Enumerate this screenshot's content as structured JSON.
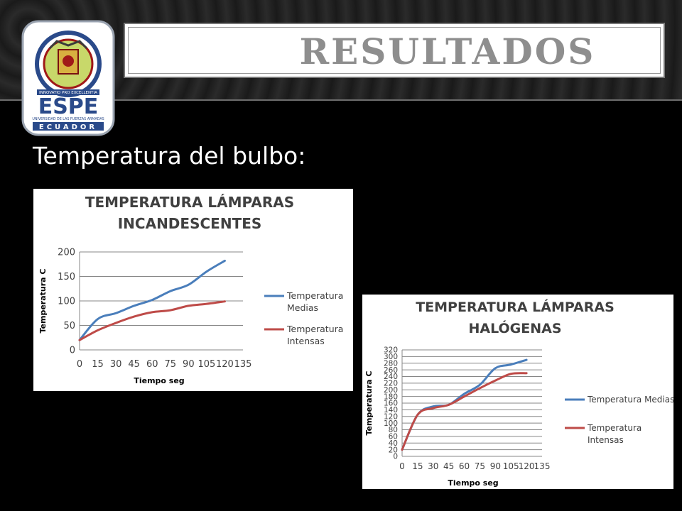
{
  "header": {
    "title": "RESULTADOS"
  },
  "logo": {
    "name": "ESPE",
    "line1": "UNIVERSIDAD DE LAS FUERZAS ARMADAS",
    "country": "ECUADOR",
    "motto": "INNOVATIO PRO EXCELLENTIA"
  },
  "subtitle": "Temperatura del bulbo:",
  "colors": {
    "series_medias": "#4a7ebb",
    "series_intensas": "#be4b48",
    "title_box": "#8e8e8e"
  },
  "chart_data": [
    {
      "type": "line",
      "title": "TEMPERATURA LÁMPARAS INCANDESCENTES",
      "title_lines": [
        "TEMPERATURA LÁMPARAS",
        "INCANDESCENTES"
      ],
      "xlabel": "Tiempo seg",
      "ylabel": "Temperatura C",
      "x_ticks": [
        0,
        15,
        30,
        45,
        60,
        75,
        90,
        105,
        120,
        135
      ],
      "y_ticks": [
        0,
        50,
        100,
        150,
        200
      ],
      "xlim": [
        0,
        135
      ],
      "ylim": [
        0,
        200
      ],
      "grid": true,
      "legend": "right",
      "x": [
        0,
        15,
        30,
        45,
        60,
        75,
        90,
        105,
        120
      ],
      "series": [
        {
          "name": "Temperatura Medias",
          "legend_lines": [
            "Temperatura",
            "Medias"
          ],
          "color": "#4a7ebb",
          "values": [
            20,
            63,
            75,
            90,
            102,
            120,
            133,
            160,
            182
          ]
        },
        {
          "name": "Temperatura Intensas",
          "legend_lines": [
            "Temperatura",
            "Intensas"
          ],
          "color": "#be4b48",
          "values": [
            20,
            40,
            55,
            68,
            77,
            81,
            90,
            94,
            99
          ]
        }
      ]
    },
    {
      "type": "line",
      "title": "TEMPERATURA LÁMPARAS HALÓGENAS",
      "title_lines": [
        "TEMPERATURA LÁMPARAS",
        "HALÓGENAS"
      ],
      "xlabel": "Tiempo seg",
      "ylabel": "Temperatura C",
      "x_ticks": [
        0,
        15,
        30,
        45,
        60,
        75,
        90,
        105,
        120,
        135
      ],
      "y_ticks": [
        0,
        20,
        40,
        60,
        80,
        100,
        120,
        140,
        160,
        180,
        200,
        220,
        240,
        260,
        280,
        300,
        320
      ],
      "xlim": [
        0,
        135
      ],
      "ylim": [
        0,
        320
      ],
      "grid": true,
      "legend": "right",
      "x": [
        0,
        15,
        30,
        45,
        60,
        75,
        90,
        105,
        120
      ],
      "series": [
        {
          "name": "Temperatura Medias",
          "legend_lines": [
            "Temperatura Medias"
          ],
          "color": "#4a7ebb",
          "values": [
            20,
            125,
            150,
            155,
            188,
            215,
            265,
            276,
            290
          ]
        },
        {
          "name": "Temperatura Intensas",
          "legend_lines": [
            "Temperatura",
            "Intensas"
          ],
          "color": "#be4b48",
          "values": [
            20,
            125,
            145,
            155,
            180,
            205,
            228,
            248,
            250
          ]
        }
      ]
    }
  ]
}
